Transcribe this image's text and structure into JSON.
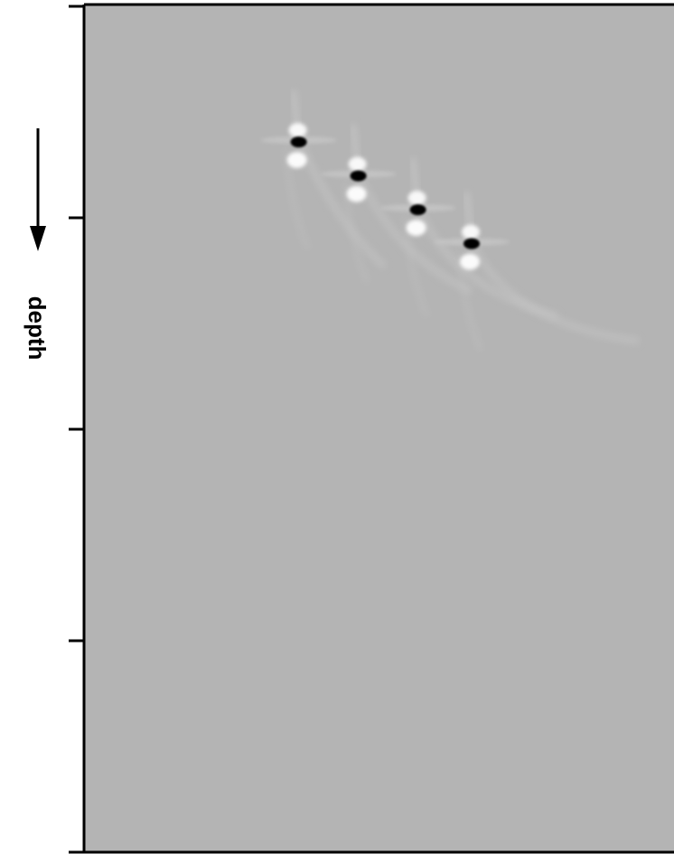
{
  "chart_data": {
    "type": "heatmap",
    "title": "",
    "xlabel": "",
    "ylabel": "depth",
    "ylabel_arrow": "down",
    "yticks_count": 5,
    "colormap": "grayscale",
    "background_value": "neutral gray",
    "grid": false,
    "legend": "none",
    "features": [
      {
        "kind": "point-scatterer",
        "column": 0.36,
        "row": 0.16
      },
      {
        "kind": "point-scatterer",
        "column": 0.46,
        "row": 0.2
      },
      {
        "kind": "point-scatterer",
        "column": 0.56,
        "row": 0.24
      },
      {
        "kind": "point-scatterer",
        "column": 0.65,
        "row": 0.28
      }
    ]
  },
  "colors": {
    "background": "#b4b4b4",
    "dark": "#000000",
    "light": "#ffffff",
    "axis": "#000000"
  }
}
